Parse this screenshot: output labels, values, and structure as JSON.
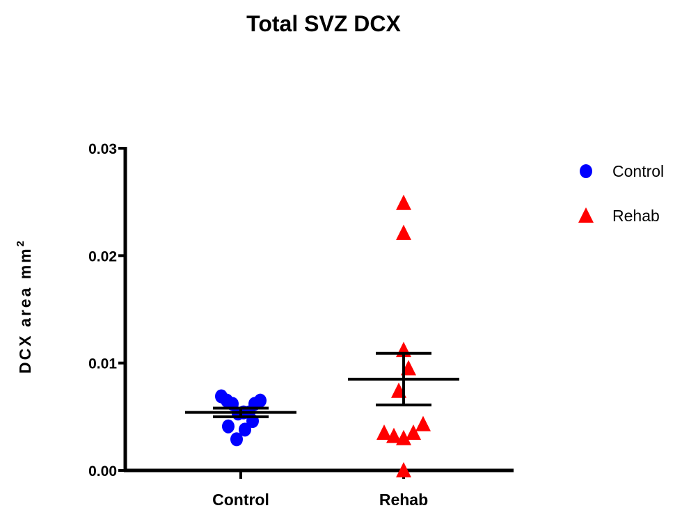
{
  "chart_data": {
    "type": "scatter",
    "title": "Total SVZ DCX",
    "ylabel": "DCX area mm",
    "ylabel_superscript": "2",
    "xlabel": "",
    "categories": [
      "Control",
      "Rehab"
    ],
    "ylim": [
      0,
      0.03
    ],
    "yticks": [
      "0.00",
      "0.01",
      "0.02",
      "0.03"
    ],
    "ytick_values": [
      0,
      0.01,
      0.02,
      0.03
    ],
    "legend_position": "top-right",
    "series": [
      {
        "name": "Control",
        "marker": "circle",
        "color": "#0000ff",
        "points": [
          {
            "x": -0.28,
            "y": 0.0069
          },
          {
            "x": -0.2,
            "y": 0.0065
          },
          {
            "x": -0.12,
            "y": 0.0062
          },
          {
            "x": -0.04,
            "y": 0.0053
          },
          {
            "x": 0.04,
            "y": 0.0054
          },
          {
            "x": 0.12,
            "y": 0.0054
          },
          {
            "x": 0.2,
            "y": 0.0062
          },
          {
            "x": 0.28,
            "y": 0.0065
          },
          {
            "x": -0.18,
            "y": 0.0041
          },
          {
            "x": 0.06,
            "y": 0.0038
          },
          {
            "x": 0.17,
            "y": 0.0046
          },
          {
            "x": -0.06,
            "y": 0.0029
          }
        ],
        "mean": 0.0054,
        "error_low": 0.005,
        "error_high": 0.0058
      },
      {
        "name": "Rehab",
        "marker": "triangle",
        "color": "#ff0000",
        "points": [
          {
            "x": 0.0,
            "y": 0.0249
          },
          {
            "x": 0.0,
            "y": 0.0221
          },
          {
            "x": 0.0,
            "y": 0.0112
          },
          {
            "x": 0.07,
            "y": 0.0095
          },
          {
            "x": -0.07,
            "y": 0.0074
          },
          {
            "x": 0.28,
            "y": 0.0043
          },
          {
            "x": 0.14,
            "y": 0.0035
          },
          {
            "x": -0.14,
            "y": 0.0032
          },
          {
            "x": -0.28,
            "y": 0.0035
          },
          {
            "x": 0.0,
            "y": 0.003
          },
          {
            "x": 0.0,
            "y": 0.0
          }
        ],
        "mean": 0.0085,
        "error_low": 0.0061,
        "error_high": 0.0109
      }
    ]
  }
}
